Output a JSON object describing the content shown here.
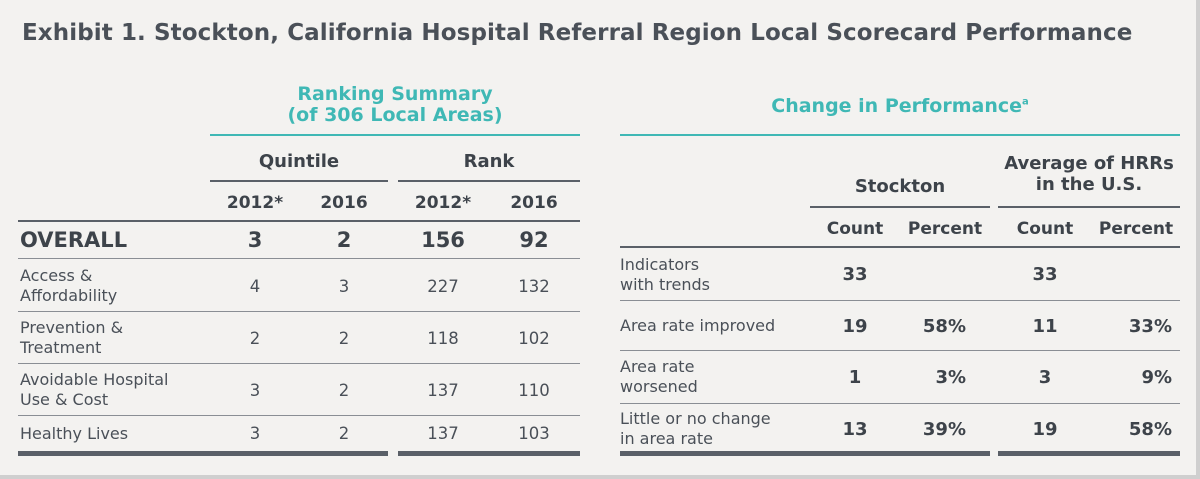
{
  "title": "Exhibit 1. Stockton, California Hospital Referral Region Local Scorecard Performance",
  "ranking": {
    "heading_line1": "Ranking Summary",
    "heading_line2": "(of 306 Local Areas)",
    "quintile_label": "Quintile",
    "rank_label": "Rank",
    "years": [
      "2012*",
      "2016",
      "2012*",
      "2016"
    ],
    "overall": {
      "label": "OVERALL",
      "values": [
        "3",
        "2",
        "156",
        "92"
      ]
    },
    "rows": [
      {
        "label1": "Access &",
        "label2": "Affordability",
        "values": [
          "4",
          "3",
          "227",
          "132"
        ]
      },
      {
        "label1": "Prevention &",
        "label2": "Treatment",
        "values": [
          "2",
          "2",
          "118",
          "102"
        ]
      },
      {
        "label1": "Avoidable Hospital",
        "label2": "Use  & Cost",
        "values": [
          "3",
          "2",
          "137",
          "110"
        ]
      },
      {
        "label1": "Healthy Lives",
        "label2": "",
        "values": [
          "3",
          "2",
          "137",
          "103"
        ]
      }
    ]
  },
  "change": {
    "heading": "Change in Performance",
    "heading_sup": "a",
    "stockton_label": "Stockton",
    "avg_label1": "Average of HRRs",
    "avg_label2": "in the U.S.",
    "cols": [
      "Count",
      "Percent",
      "Count",
      "Percent"
    ],
    "rows": [
      {
        "label1": "Indicators",
        "label2": "with trends",
        "values": [
          "33",
          "",
          "33",
          ""
        ]
      },
      {
        "label1": "Area rate improved",
        "label2": "",
        "values": [
          "19",
          "58%",
          "11",
          "33%"
        ]
      },
      {
        "label1": "Area rate",
        "label2": "worsened",
        "values": [
          "1",
          "3%",
          "3",
          "9%"
        ]
      },
      {
        "label1": "Little or no change",
        "label2": "in area rate",
        "values": [
          "13",
          "39%",
          "19",
          "58%"
        ]
      }
    ]
  }
}
